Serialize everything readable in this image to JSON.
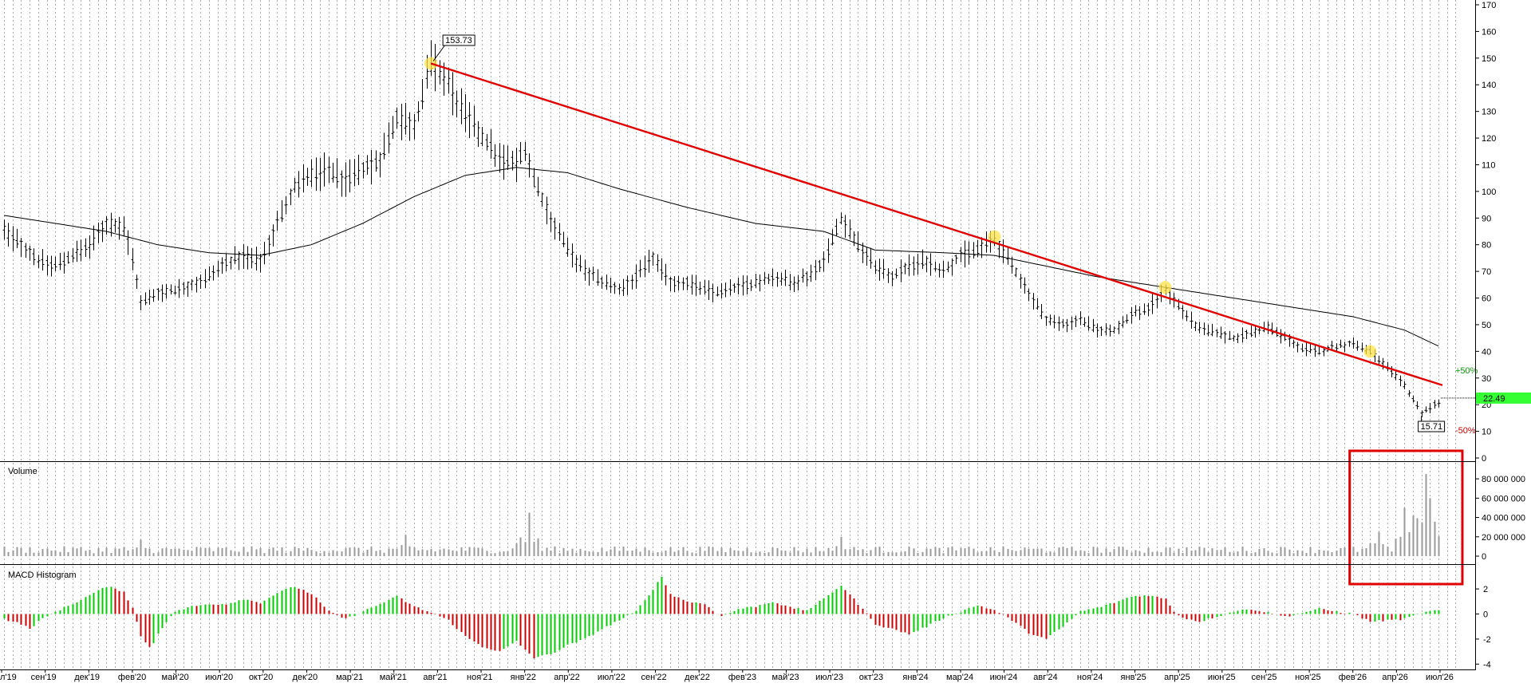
{
  "chart_data": [
    {
      "type": "ohlc",
      "panel": "price",
      "y_ticks": [
        "170",
        "160",
        "150",
        "140",
        "130",
        "120",
        "110",
        "100",
        "90",
        "80",
        "70",
        "60",
        "50",
        "40",
        "30",
        "20",
        "10",
        "0"
      ],
      "ylim": [
        0,
        170
      ],
      "last_price": "22.49",
      "last_price_value": 22.49,
      "high_label": "153.73",
      "high_value": 153.73,
      "low_label": "15.71",
      "low_value": 15.71,
      "annotations": [
        "+50%",
        "-50%"
      ],
      "trendline": {
        "from": {
          "month": 25,
          "value": 148
        },
        "to": {
          "month": 84,
          "value": 27
        }
      },
      "touch_points": [
        {
          "month": 25,
          "value": 148
        },
        {
          "month": 58,
          "value": 83
        },
        {
          "month": 68,
          "value": 64
        },
        {
          "month": 80,
          "value": 40
        }
      ],
      "price_series": {
        "start_month": 0,
        "end_month": 84,
        "keypoints": [
          [
            0,
            85
          ],
          [
            1,
            80
          ],
          [
            2,
            74
          ],
          [
            3,
            72
          ],
          [
            4,
            76
          ],
          [
            5,
            80
          ],
          [
            6,
            88
          ],
          [
            7,
            87
          ],
          [
            7.5,
            75
          ],
          [
            8,
            58
          ],
          [
            9,
            62
          ],
          [
            10,
            63
          ],
          [
            11,
            65
          ],
          [
            12,
            68
          ],
          [
            13,
            73
          ],
          [
            14,
            76
          ],
          [
            15,
            74
          ],
          [
            16,
            88
          ],
          [
            17,
            102
          ],
          [
            18,
            106
          ],
          [
            19,
            108
          ],
          [
            20,
            104
          ],
          [
            21,
            108
          ],
          [
            22,
            112
          ],
          [
            23,
            128
          ],
          [
            24,
            125
          ],
          [
            25,
            148
          ],
          [
            26,
            140
          ],
          [
            27,
            128
          ],
          [
            28,
            120
          ],
          [
            29,
            112
          ],
          [
            30,
            110
          ],
          [
            30.5,
            116
          ],
          [
            31,
            104
          ],
          [
            32,
            90
          ],
          [
            33,
            78
          ],
          [
            34,
            70
          ],
          [
            35,
            66
          ],
          [
            36,
            63
          ],
          [
            37,
            68
          ],
          [
            38,
            75
          ],
          [
            39,
            66
          ],
          [
            40,
            66
          ],
          [
            41,
            63
          ],
          [
            42,
            62
          ],
          [
            43,
            64
          ],
          [
            44,
            66
          ],
          [
            45,
            68
          ],
          [
            46,
            66
          ],
          [
            47,
            68
          ],
          [
            48,
            74
          ],
          [
            49,
            90
          ],
          [
            49.5,
            85
          ],
          [
            50,
            80
          ],
          [
            51,
            72
          ],
          [
            52,
            68
          ],
          [
            53,
            72
          ],
          [
            54,
            74
          ],
          [
            55,
            70
          ],
          [
            56,
            76
          ],
          [
            57,
            78
          ],
          [
            58,
            82
          ],
          [
            59,
            72
          ],
          [
            60,
            62
          ],
          [
            61,
            52
          ],
          [
            62,
            50
          ],
          [
            63,
            52
          ],
          [
            64,
            48
          ],
          [
            65,
            48
          ],
          [
            66,
            54
          ],
          [
            67,
            56
          ],
          [
            68,
            63
          ],
          [
            69,
            55
          ],
          [
            70,
            48
          ],
          [
            71,
            47
          ],
          [
            72,
            45
          ],
          [
            73,
            47
          ],
          [
            74,
            49
          ],
          [
            75,
            45
          ],
          [
            76,
            41
          ],
          [
            77,
            40
          ],
          [
            78,
            42
          ],
          [
            79,
            43
          ],
          [
            80,
            40
          ],
          [
            81,
            34
          ],
          [
            82,
            27
          ],
          [
            83,
            17
          ],
          [
            84,
            21
          ]
        ]
      },
      "ma_series": {
        "keypoints": [
          [
            0,
            91
          ],
          [
            3,
            88
          ],
          [
            6,
            85
          ],
          [
            9,
            80
          ],
          [
            12,
            77
          ],
          [
            15,
            76
          ],
          [
            18,
            80
          ],
          [
            21,
            88
          ],
          [
            24,
            98
          ],
          [
            27,
            106
          ],
          [
            30,
            109
          ],
          [
            33,
            107
          ],
          [
            36,
            101
          ],
          [
            40,
            94
          ],
          [
            44,
            88
          ],
          [
            48,
            85
          ],
          [
            51,
            78
          ],
          [
            55,
            77
          ],
          [
            58,
            76
          ],
          [
            61,
            72
          ],
          [
            64,
            68
          ],
          [
            67,
            65
          ],
          [
            70,
            62
          ],
          [
            73,
            59
          ],
          [
            76,
            56
          ],
          [
            79,
            53
          ],
          [
            82,
            48
          ],
          [
            84,
            42
          ]
        ]
      },
      "x_labels": [
        "л'19",
        "сен'19",
        "дек'19",
        "фев'20",
        "май'20",
        "июл'20",
        "окт'20",
        "дек'20",
        "мар'21",
        "май'21",
        "авг'21",
        "ноя'21",
        "янв'22",
        "апр'22",
        "июл'22",
        "сен'22",
        "дек'22",
        "фев'23",
        "май'23",
        "июл'23",
        "окт'23",
        "янв'24",
        "мар'24",
        "июн'24",
        "авг'24",
        "ноя'24",
        "янв'25",
        "апр'25",
        "июн'25",
        "сен'25",
        "ноя'25",
        "фев'26",
        "апр'26",
        "июл'26"
      ]
    },
    {
      "type": "bar",
      "panel": "volume",
      "title": "Volume",
      "y_ticks": [
        "80 000 000",
        "60 000 000",
        "40 000 000",
        "20 000 000",
        "0"
      ],
      "ylim": [
        0,
        90000000
      ],
      "typical_volume": 6000000,
      "spikes": [
        {
          "month": 8,
          "value": 17000000
        },
        {
          "month": 23.5,
          "value": 22000000
        },
        {
          "month": 30.7,
          "value": 45000000
        },
        {
          "month": 49,
          "value": 20000000
        },
        {
          "month": 80.5,
          "value": 25000000
        },
        {
          "month": 82,
          "value": 50000000
        },
        {
          "month": 82.5,
          "value": 42000000
        },
        {
          "month": 83.3,
          "value": 85000000
        },
        {
          "month": 83.6,
          "value": 60000000
        }
      ],
      "highlight_box": {
        "from_month": 78.8,
        "to_month": 85.4
      }
    },
    {
      "type": "histogram",
      "panel": "macd",
      "title": "MACD Histogram",
      "y_ticks": [
        "2",
        "0",
        "-2",
        "-4"
      ],
      "ylim": [
        -4.2,
        3.2
      ],
      "colors": {
        "up": "#00cc00",
        "down": "#cc0000"
      },
      "keypoints": [
        [
          0,
          -0.4
        ],
        [
          1,
          -0.8
        ],
        [
          1.5,
          -1.2
        ],
        [
          2,
          -0.6
        ],
        [
          3,
          0.2
        ],
        [
          4,
          0.8
        ],
        [
          5,
          1.5
        ],
        [
          6,
          2.2
        ],
        [
          7,
          1.8
        ],
        [
          7.5,
          0.5
        ],
        [
          8,
          -1.8
        ],
        [
          8.6,
          -2.8
        ],
        [
          9,
          -1.5
        ],
        [
          10,
          0.2
        ],
        [
          11,
          0.6
        ],
        [
          12,
          0.8
        ],
        [
          13,
          0.8
        ],
        [
          14,
          1.2
        ],
        [
          15,
          0.9
        ],
        [
          16,
          1.7
        ],
        [
          17,
          2.2
        ],
        [
          18,
          1.6
        ],
        [
          19,
          0.2
        ],
        [
          20,
          -0.4
        ],
        [
          21,
          0.2
        ],
        [
          22,
          0.8
        ],
        [
          23,
          1.4
        ],
        [
          24,
          0.6
        ],
        [
          25,
          0.1
        ],
        [
          26,
          -0.5
        ],
        [
          27,
          -1.8
        ],
        [
          28,
          -2.6
        ],
        [
          29,
          -3.0
        ],
        [
          30,
          -2.2
        ],
        [
          31,
          -3.5
        ],
        [
          32,
          -3.2
        ],
        [
          33,
          -2.5
        ],
        [
          34,
          -2.0
        ],
        [
          35,
          -1.2
        ],
        [
          36,
          -0.5
        ],
        [
          37,
          0.2
        ],
        [
          38,
          2.0
        ],
        [
          38.5,
          3.0
        ],
        [
          39,
          1.6
        ],
        [
          40,
          1.0
        ],
        [
          41,
          0.8
        ],
        [
          42,
          -0.2
        ],
        [
          43,
          0.4
        ],
        [
          44,
          0.6
        ],
        [
          45,
          1.0
        ],
        [
          46,
          0.5
        ],
        [
          47,
          0.3
        ],
        [
          48,
          1.2
        ],
        [
          49,
          2.3
        ],
        [
          50,
          0.8
        ],
        [
          51,
          -0.8
        ],
        [
          52,
          -1.2
        ],
        [
          53,
          -1.6
        ],
        [
          54,
          -1.0
        ],
        [
          55,
          -0.3
        ],
        [
          56,
          0.2
        ],
        [
          57,
          0.7
        ],
        [
          58,
          0.3
        ],
        [
          59,
          -0.5
        ],
        [
          60,
          -1.5
        ],
        [
          61,
          -2.0
        ],
        [
          62,
          -1.0
        ],
        [
          63,
          0.2
        ],
        [
          64,
          0.5
        ],
        [
          65,
          0.9
        ],
        [
          66,
          1.4
        ],
        [
          67,
          1.5
        ],
        [
          68,
          1.2
        ],
        [
          68.5,
          0.2
        ],
        [
          69,
          -0.3
        ],
        [
          70,
          -0.6
        ],
        [
          71,
          -0.2
        ],
        [
          72,
          0.2
        ],
        [
          73,
          0.4
        ],
        [
          74,
          0.1
        ],
        [
          75,
          -0.2
        ],
        [
          76,
          0.1
        ],
        [
          77,
          0.4
        ],
        [
          78,
          0.2
        ],
        [
          79,
          0.0
        ],
        [
          80,
          -0.6
        ],
        [
          81,
          -0.5
        ],
        [
          82,
          -0.4
        ],
        [
          83,
          0.1
        ],
        [
          84,
          0.3
        ]
      ]
    }
  ]
}
